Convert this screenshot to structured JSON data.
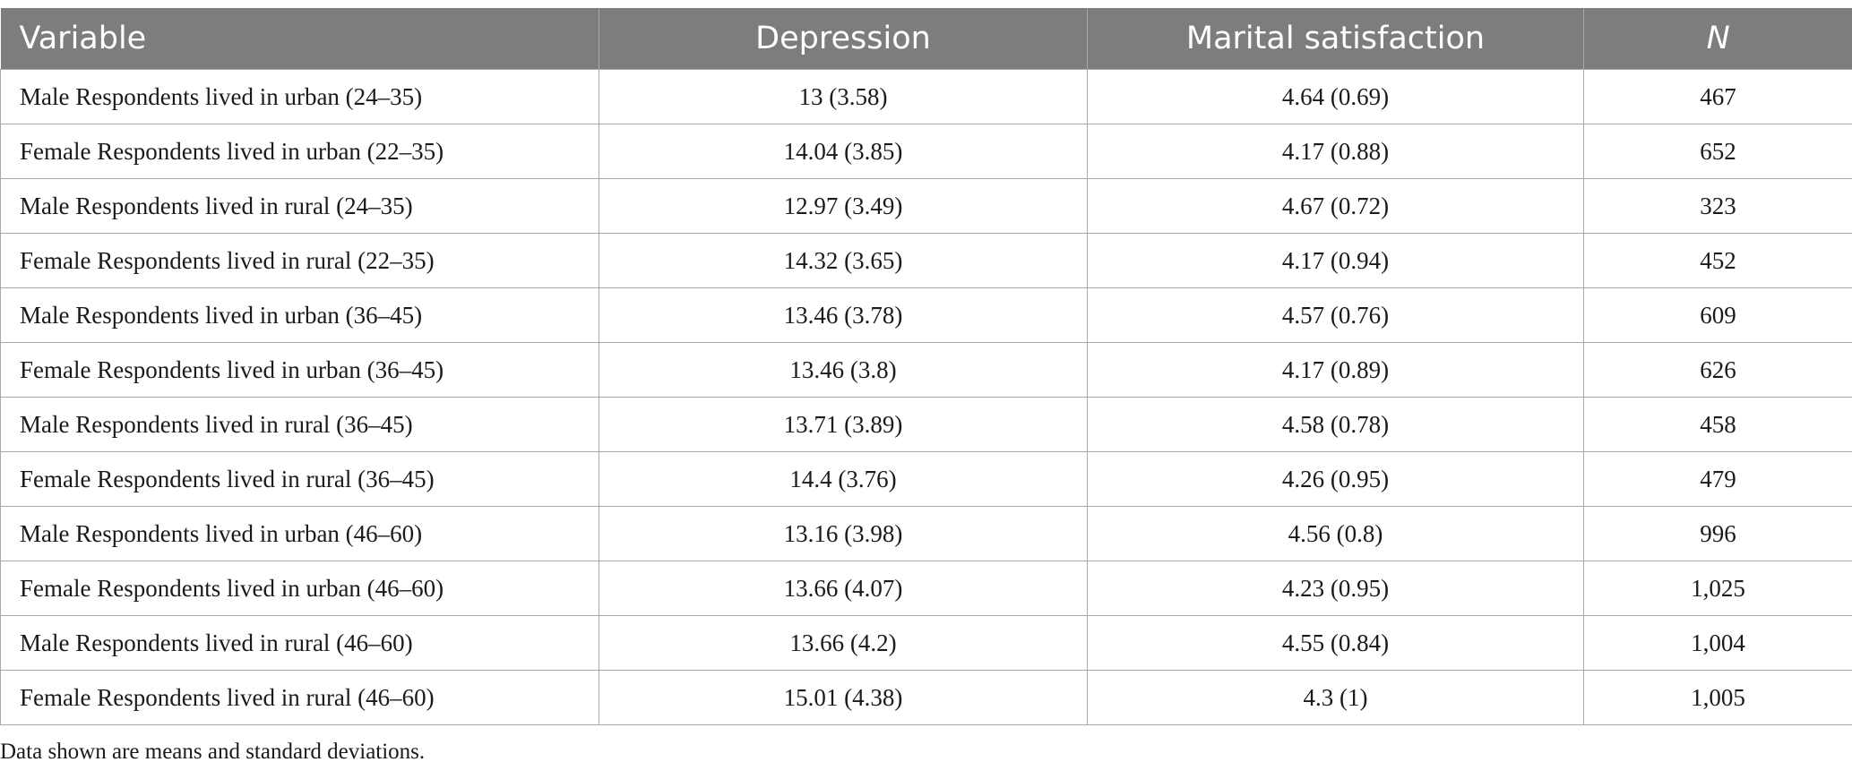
{
  "table": {
    "headers": [
      "Variable",
      "Depression",
      "Marital satisfaction",
      "N"
    ],
    "rows": [
      [
        "Male Respondents lived in urban (24–35)",
        "13 (3.58)",
        "4.64 (0.69)",
        "467"
      ],
      [
        "Female Respondents lived in urban (22–35)",
        "14.04 (3.85)",
        "4.17 (0.88)",
        "652"
      ],
      [
        "Male Respondents lived in rural (24–35)",
        "12.97 (3.49)",
        "4.67 (0.72)",
        "323"
      ],
      [
        "Female Respondents lived in rural (22–35)",
        "14.32 (3.65)",
        "4.17 (0.94)",
        "452"
      ],
      [
        "Male Respondents lived in urban (36–45)",
        "13.46 (3.78)",
        "4.57 (0.76)",
        "609"
      ],
      [
        "Female Respondents lived in urban (36–45)",
        "13.46 (3.8)",
        "4.17 (0.89)",
        "626"
      ],
      [
        "Male Respondents lived in rural (36–45)",
        "13.71 (3.89)",
        "4.58 (0.78)",
        "458"
      ],
      [
        "Female Respondents lived in rural (36–45)",
        "14.4 (3.76)",
        "4.26 (0.95)",
        "479"
      ],
      [
        "Male Respondents lived in urban (46–60)",
        "13.16 (3.98)",
        "4.56 (0.8)",
        "996"
      ],
      [
        "Female Respondents lived in urban (46–60)",
        "13.66 (4.07)",
        "4.23 (0.95)",
        "1,025"
      ],
      [
        "Male Respondents lived in rural (46–60)",
        "13.66 (4.2)",
        "4.55 (0.84)",
        "1,004"
      ],
      [
        "Female Respondents lived in rural (46–60)",
        "15.01 (4.38)",
        "4.3 (1)",
        "1,005"
      ]
    ]
  },
  "footnote": "Data shown are means and standard deviations.",
  "colors": {
    "header_bg": "#7d7d7d",
    "header_text": "#ffffff",
    "grid_line": "#a9a9a9",
    "body_text": "#1a1a1a"
  }
}
